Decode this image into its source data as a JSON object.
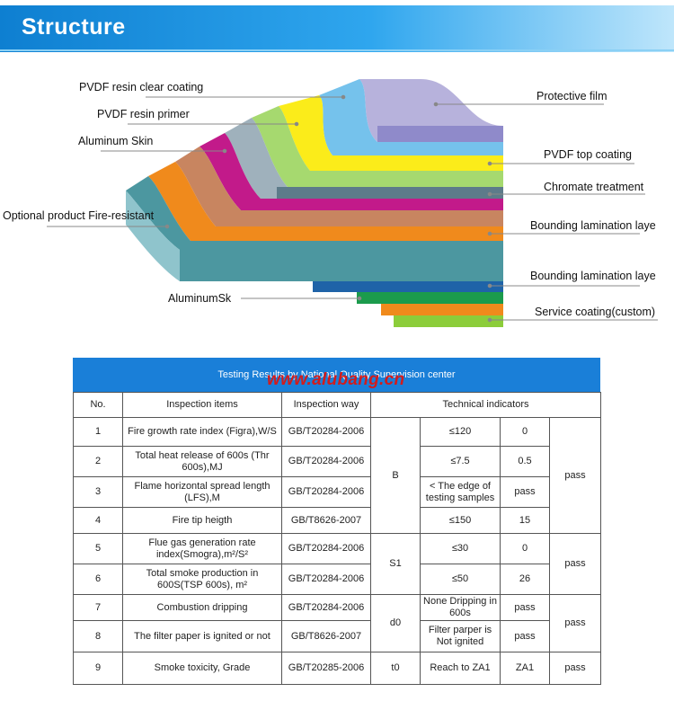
{
  "header": {
    "title": "Structure"
  },
  "labels": {
    "clear_coating": "PVDF resin clear coating",
    "primer": "PVDF resin primer",
    "aluminum_skin": "Aluminum Skin",
    "fire_resistant": "Optional product Fire-resistant",
    "aluminumsk": "AluminumSk",
    "protective_film": "Protective film",
    "pvdf_top": "PVDF top coating",
    "chromate": "Chromate treatment",
    "bounding1": "Bounding lamination laye",
    "bounding2": "Bounding lamination laye",
    "service": "Service coating(custom)"
  },
  "colors": {
    "header": "#1a8fe0",
    "table_header": "#1a7fd8",
    "watermark": "#d21c1c",
    "layers": [
      "#b7b2dc",
      "#75c2ec",
      "#fbec1a",
      "#a6d96f",
      "#9fb1bc",
      "#c21a8a",
      "#c88560",
      "#f08a1c",
      "#4c97a0",
      "#1f63a8",
      "#1b9b4c",
      "#f08a1c",
      "#8ccd3a"
    ]
  },
  "table": {
    "title": "Testing Results by National Quality Supervision center",
    "watermark": "www.alubang.cn",
    "columns": [
      "No.",
      "Inspection items",
      "Inspection way",
      "Technical indicators"
    ],
    "rows": [
      {
        "no": "1",
        "item": "Fire growth rate index (Figra),W/S",
        "way": "GB/T20284-2006",
        "value": "≤120",
        "result": "0"
      },
      {
        "no": "2",
        "item": "Total heat release of 600s (Thr 600s),MJ",
        "way": "GB/T20284-2006",
        "value": "≤7.5",
        "result": "0.5"
      },
      {
        "no": "3",
        "item": "Flame horizontal spread length (LFS),M",
        "way": "GB/T20284-2006",
        "value": "< The edge of testing samples",
        "result": "pass"
      },
      {
        "no": "4",
        "item": "Fire tip heigth",
        "way": "GB/T8626-2007",
        "value": "≤150",
        "result": "15"
      },
      {
        "no": "5",
        "item": "Flue gas generation rate index(Smogra),m²/S²",
        "way": "GB/T20284-2006",
        "value": "≤30",
        "result": "0"
      },
      {
        "no": "6",
        "item": "Total smoke production in 600S(TSP 600s), m²",
        "way": "GB/T20284-2006",
        "value": "≤50",
        "result": "26"
      },
      {
        "no": "7",
        "item": "Combustion dripping",
        "way": "GB/T20284-2006",
        "value": "None Dripping in 600s",
        "result": "pass"
      },
      {
        "no": "8",
        "item": "The filter paper is ignited or not",
        "way": "GB/T8626-2007",
        "value": "Filter parper is Not ignited",
        "result": "pass"
      },
      {
        "no": "9",
        "item": "Smoke toxicity, Grade",
        "way": "GB/T20285-2006",
        "value": "Reach to ZA1",
        "result": "ZA1"
      }
    ],
    "groups": {
      "g1": "B",
      "g2": "S1",
      "g3": "d0",
      "g4": "t0"
    },
    "pass": {
      "p1": "pass",
      "p2": "pass",
      "p3": "pass",
      "p4": "pass"
    }
  }
}
